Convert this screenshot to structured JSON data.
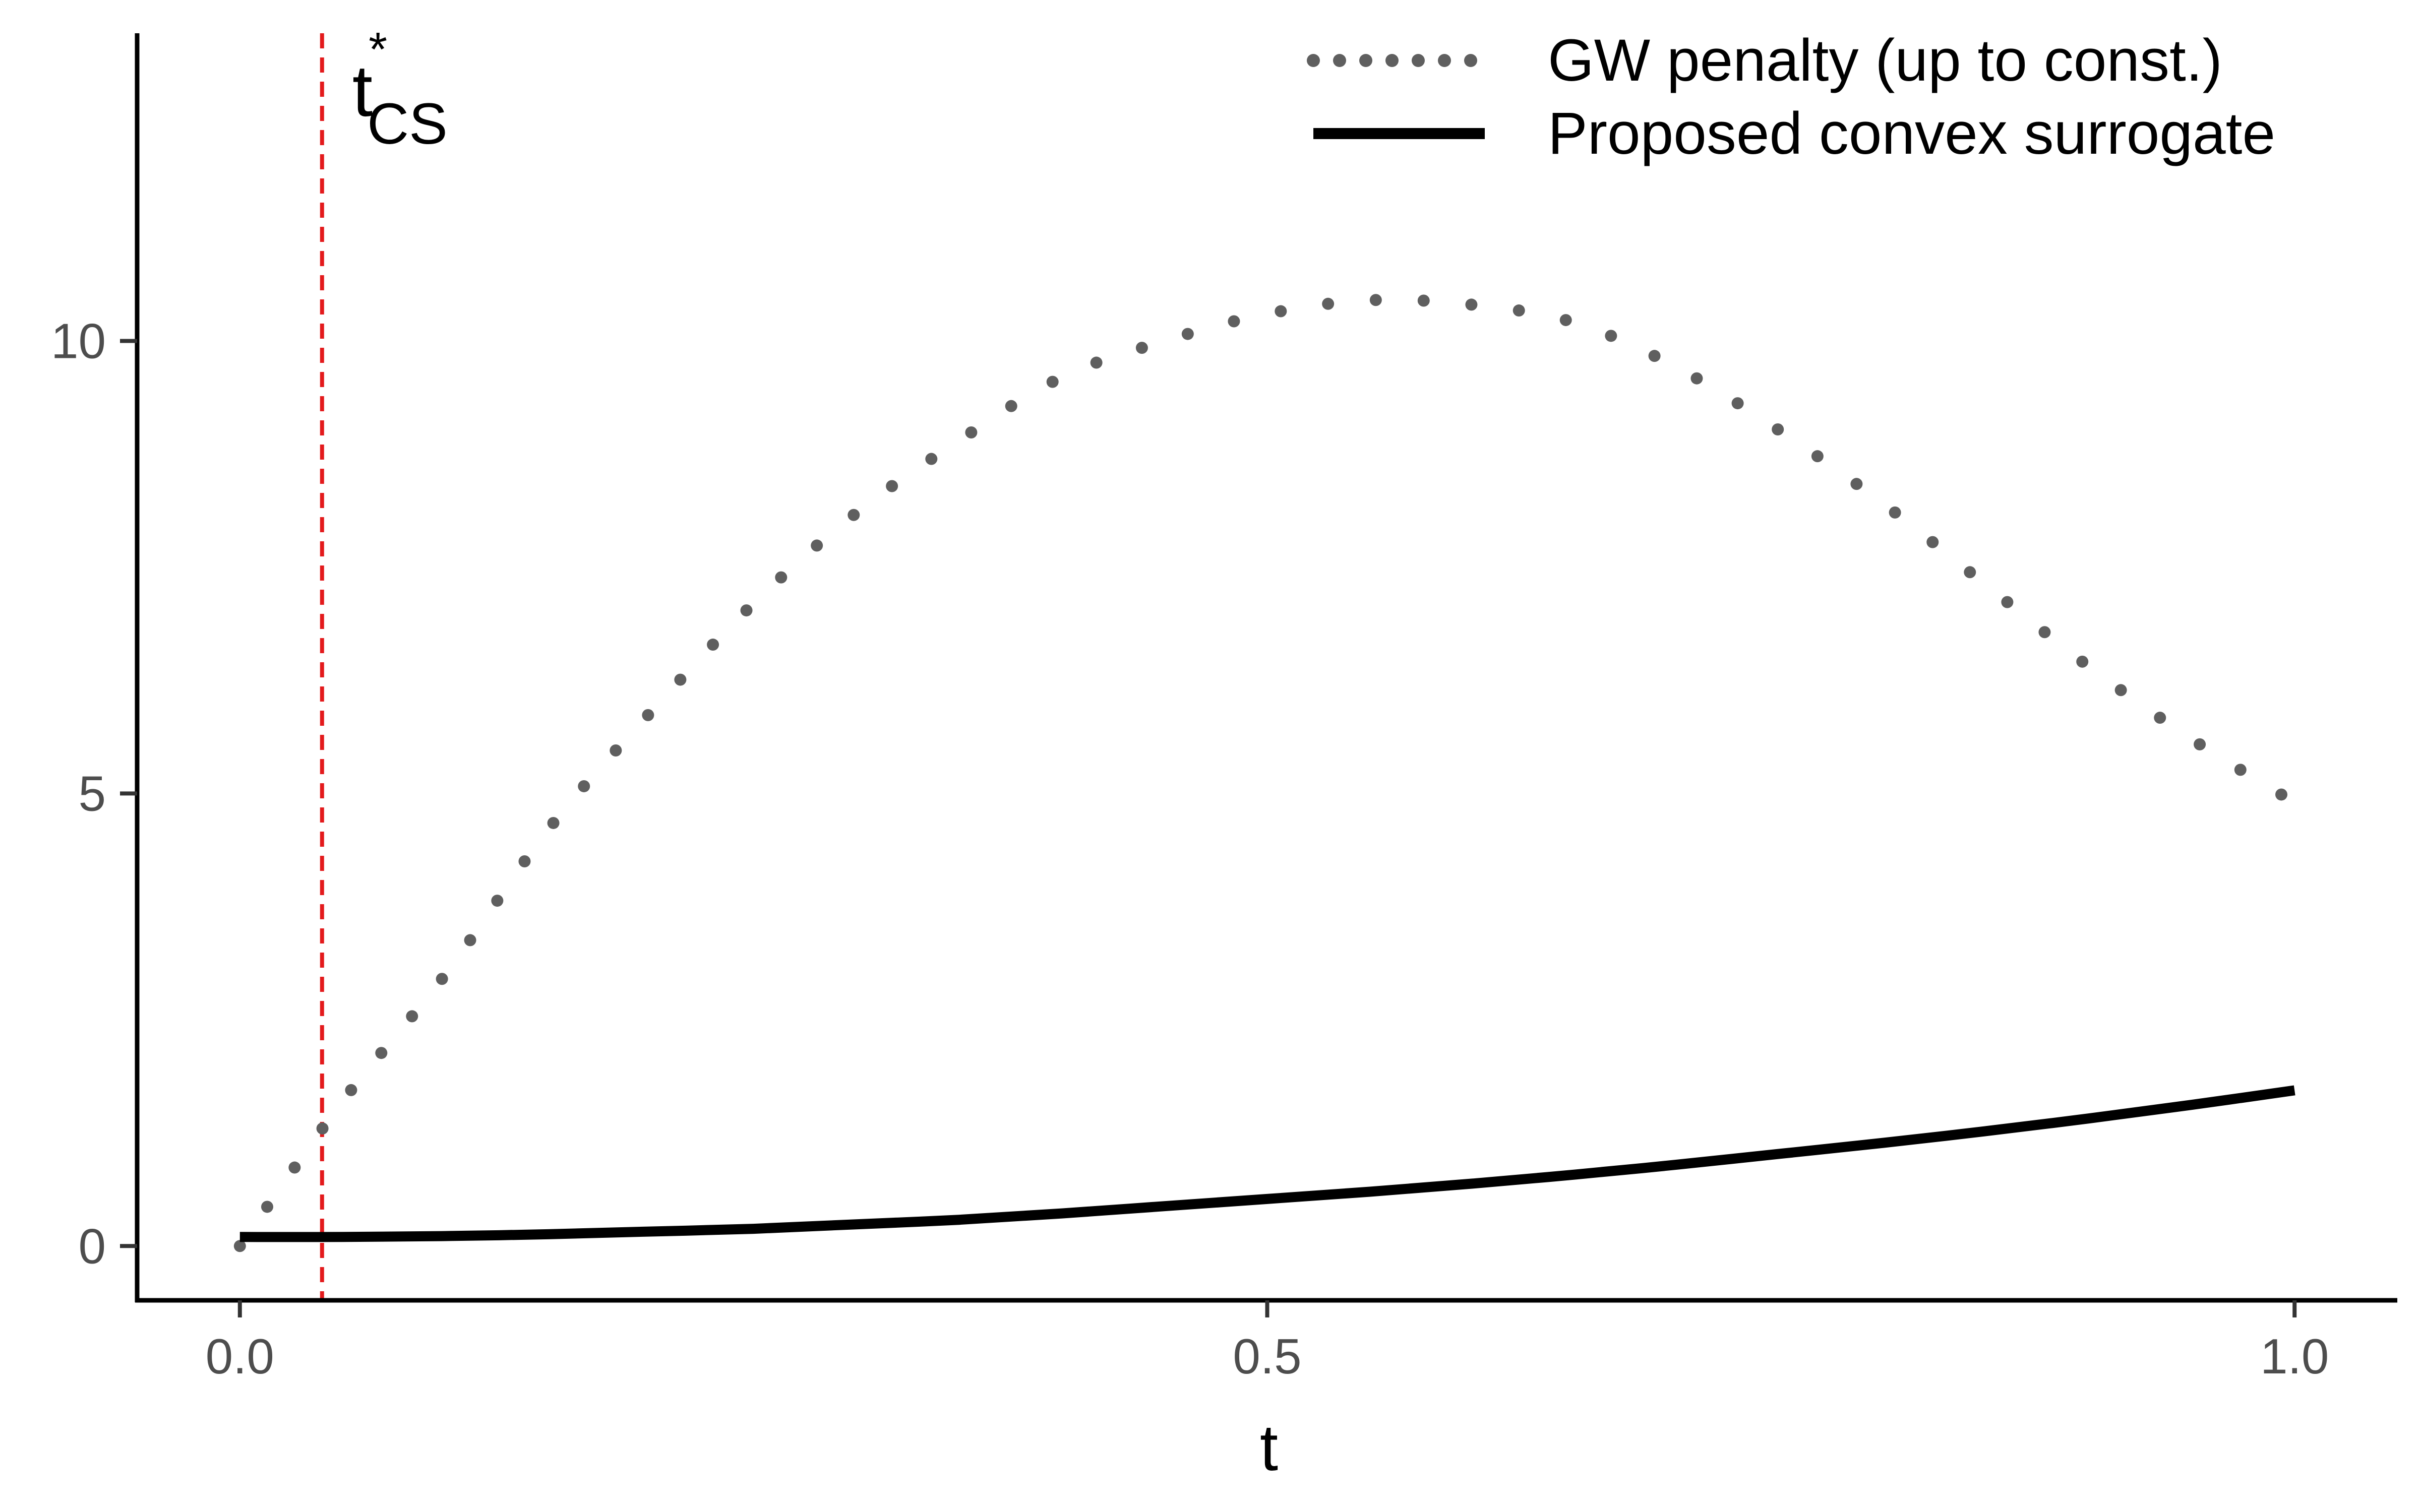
{
  "chart_data": {
    "type": "line",
    "title": "",
    "xlabel": "t",
    "ylabel": "",
    "xlim": [
      -0.05,
      1.05
    ],
    "ylim": [
      -0.6,
      13.4
    ],
    "x_ticks": [
      0.0,
      0.5,
      1.0
    ],
    "x_tick_labels": [
      "0.0",
      "0.5",
      "1.0"
    ],
    "y_ticks": [
      0,
      5,
      10
    ],
    "y_tick_labels": [
      "0",
      "5",
      "10"
    ],
    "grid": false,
    "legend_position": "top-right",
    "series": [
      {
        "name": "GW penalty (up to const.)",
        "style": "dotted",
        "color": "#5f5f5f",
        "x": [
          0.0,
          0.05,
          0.1,
          0.15,
          0.2,
          0.25,
          0.3,
          0.35,
          0.4,
          0.45,
          0.5,
          0.55,
          0.6,
          0.65,
          0.7,
          0.75,
          0.8,
          0.85,
          0.9,
          0.95,
          1.0
        ],
        "y": [
          0.0,
          1.6,
          3.0,
          4.6,
          5.9,
          7.1,
          8.1,
          8.9,
          9.6,
          10.0,
          10.3,
          10.45,
          10.4,
          10.2,
          9.7,
          9.0,
          8.2,
          7.3,
          6.4,
          5.6,
          4.9
        ]
      },
      {
        "name": "Proposed convex surrogate",
        "style": "solid",
        "color": "#000000",
        "x": [
          0.0,
          0.05,
          0.1,
          0.15,
          0.2,
          0.25,
          0.3,
          0.35,
          0.4,
          0.45,
          0.5,
          0.55,
          0.6,
          0.65,
          0.7,
          0.75,
          0.8,
          0.85,
          0.9,
          0.95,
          1.0
        ],
        "y": [
          0.1,
          0.1,
          0.11,
          0.13,
          0.16,
          0.19,
          0.24,
          0.29,
          0.36,
          0.44,
          0.52,
          0.6,
          0.69,
          0.79,
          0.9,
          1.02,
          1.14,
          1.27,
          1.41,
          1.56,
          1.72
        ]
      }
    ],
    "annotations": [
      {
        "type": "vline",
        "x": 0.04,
        "color": "#e31a1c",
        "style": "dashed",
        "label_main": "t",
        "label_sup": "*",
        "label_sub": "CS"
      }
    ]
  }
}
